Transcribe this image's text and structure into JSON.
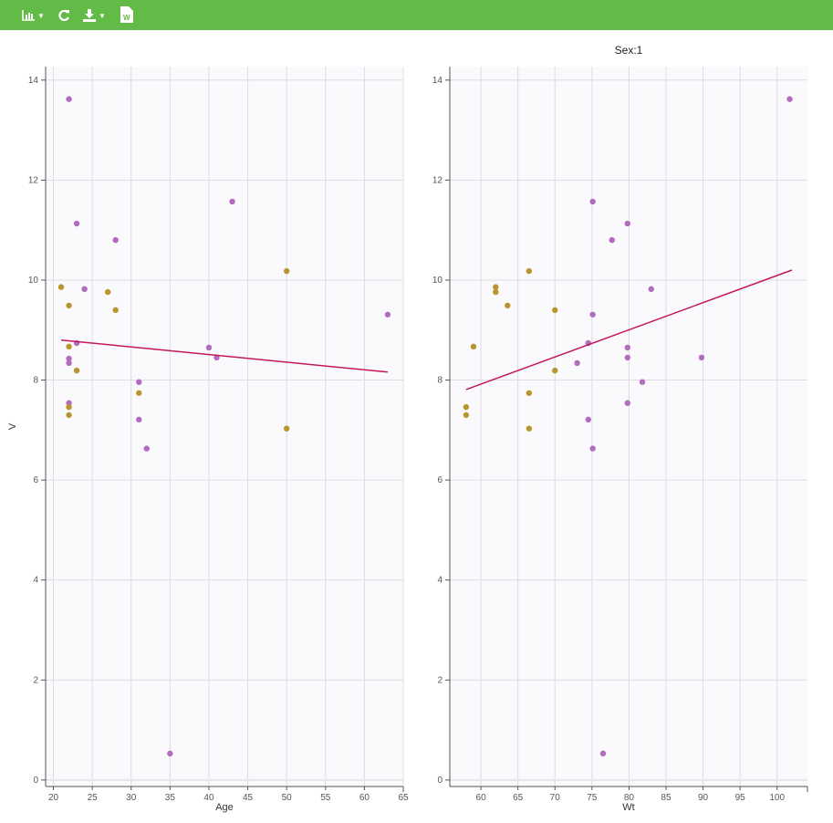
{
  "toolbar": {
    "items": [
      {
        "icon": "bar-chart-icon",
        "dropdown": true
      },
      {
        "icon": "refresh-icon"
      },
      {
        "icon": "download-icon",
        "dropdown": true
      },
      {
        "icon": "word-document-icon",
        "label": "W"
      }
    ]
  },
  "colors": {
    "toolbar": "#62bb46",
    "group_a": "#b36bbf",
    "group_b": "#b8962e",
    "trend": "#c2185b",
    "plot_bg": "#fafafd"
  },
  "chart_data": [
    {
      "type": "scatter",
      "title": "",
      "xlabel": "Age",
      "ylabel": "V",
      "xlim": [
        19,
        65
      ],
      "ylim": [
        -0.13,
        14.27
      ],
      "xticks": [
        20,
        25,
        30,
        35,
        40,
        45,
        50,
        55,
        60,
        65
      ],
      "yticks": [
        0,
        2,
        4,
        6,
        8,
        10,
        12,
        14
      ],
      "grid": true,
      "series": [
        {
          "color": "#b36bbf",
          "points": [
            [
              22,
              13.62
            ],
            [
              23,
              11.13
            ],
            [
              28,
              10.8
            ],
            [
              24,
              9.82
            ],
            [
              43,
              11.57
            ],
            [
              63,
              9.31
            ],
            [
              23,
              8.74
            ],
            [
              22,
              8.43
            ],
            [
              22,
              8.34
            ],
            [
              22,
              7.54
            ],
            [
              40,
              8.65
            ],
            [
              41,
              8.45
            ],
            [
              31,
              7.96
            ],
            [
              31,
              7.21
            ],
            [
              32,
              6.63
            ],
            [
              35,
              0.53
            ]
          ]
        },
        {
          "color": "#b8962e",
          "points": [
            [
              21,
              9.86
            ],
            [
              22,
              9.49
            ],
            [
              27,
              9.76
            ],
            [
              28,
              9.4
            ],
            [
              50,
              10.18
            ],
            [
              22,
              8.67
            ],
            [
              23,
              8.19
            ],
            [
              31,
              7.74
            ],
            [
              22,
              7.46
            ],
            [
              22,
              7.3
            ],
            [
              50,
              7.03
            ]
          ]
        }
      ],
      "trend": [
        [
          21,
          8.8
        ],
        [
          63,
          8.16
        ]
      ]
    },
    {
      "type": "scatter",
      "title": "Sex:1",
      "xlabel": "Wt",
      "ylabel": "",
      "xlim": [
        55.8,
        104.1
      ],
      "ylim": [
        -0.13,
        14.27
      ],
      "xticks": [
        60,
        65,
        70,
        75,
        80,
        85,
        90,
        95,
        100
      ],
      "yticks": [
        0,
        2,
        4,
        6,
        8,
        10,
        12,
        14
      ],
      "grid": true,
      "series": [
        {
          "color": "#b36bbf",
          "points": [
            [
              101.7,
              13.62
            ],
            [
              75.1,
              11.57
            ],
            [
              79.8,
              11.13
            ],
            [
              77.7,
              10.8
            ],
            [
              83,
              9.82
            ],
            [
              75.1,
              9.31
            ],
            [
              74.5,
              8.74
            ],
            [
              73,
              8.34
            ],
            [
              79.8,
              8.65
            ],
            [
              79.8,
              8.45
            ],
            [
              89.8,
              8.45
            ],
            [
              81.8,
              7.96
            ],
            [
              79.8,
              7.54
            ],
            [
              74.5,
              7.21
            ],
            [
              75.1,
              6.63
            ],
            [
              76.5,
              0.53
            ]
          ]
        },
        {
          "color": "#b8962e",
          "points": [
            [
              58,
              7.46
            ],
            [
              58,
              7.3
            ],
            [
              59,
              8.67
            ],
            [
              62,
              9.86
            ],
            [
              62,
              9.76
            ],
            [
              63.6,
              9.49
            ],
            [
              66.5,
              10.18
            ],
            [
              70,
              9.4
            ],
            [
              70,
              8.19
            ],
            [
              66.5,
              7.74
            ],
            [
              66.5,
              7.03
            ]
          ]
        }
      ],
      "trend": [
        [
          58,
          7.81
        ],
        [
          102,
          10.2
        ]
      ]
    }
  ]
}
